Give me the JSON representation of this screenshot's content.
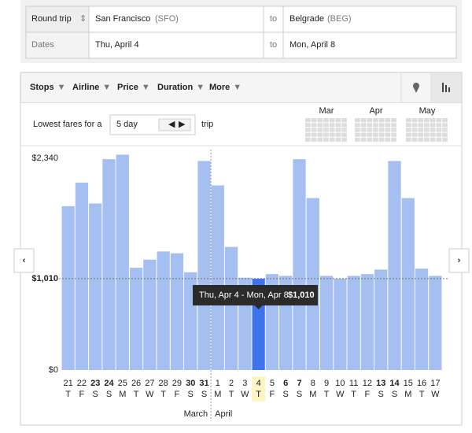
{
  "search": {
    "trip_type": "Round trip",
    "origin": "San Francisco",
    "origin_code": "(SFO)",
    "to_1": "to",
    "destination": "Belgrade",
    "destination_code": "(BEG)",
    "dates_label": "Dates",
    "depart": "Thu, April 4",
    "to_2": "to",
    "return": "Mon, April 8"
  },
  "filters": [
    "Stops",
    "Airline",
    "Price",
    "Duration",
    "More"
  ],
  "trip_length": {
    "prefix": "Lowest fares for a",
    "value": "5 day",
    "suffix": "trip"
  },
  "mini_calendar": [
    "Mar",
    "Apr",
    "May"
  ],
  "months": [
    "March",
    "April"
  ],
  "tooltip": {
    "dates": "Thu, Apr 4 - Mon, Apr 8",
    "price": "$1,010"
  },
  "chart_data": {
    "type": "bar",
    "categories": [
      "21",
      "22",
      "23",
      "24",
      "25",
      "26",
      "27",
      "28",
      "29",
      "30",
      "31",
      "1",
      "2",
      "3",
      "4",
      "5",
      "6",
      "7",
      "8",
      "9",
      "10",
      "11",
      "12",
      "13",
      "14",
      "15",
      "16",
      "17"
    ],
    "weekdays": [
      "T",
      "F",
      "S",
      "S",
      "M",
      "T",
      "W",
      "T",
      "F",
      "S",
      "S",
      "M",
      "T",
      "W",
      "T",
      "F",
      "S",
      "S",
      "M",
      "T",
      "W",
      "T",
      "F",
      "S",
      "S",
      "M",
      "T",
      "W"
    ],
    "values": [
      1810,
      2070,
      1840,
      2330,
      2380,
      1130,
      1220,
      1310,
      1290,
      1080,
      2310,
      2040,
      1360,
      1020,
      1010,
      1060,
      1040,
      2330,
      1900,
      1040,
      1010,
      1040,
      1060,
      1110,
      2310,
      1900,
      1120,
      1040
    ],
    "color": "#a4bff0",
    "selected_color": "#3f73ec",
    "selected": 14,
    "ylim": [
      0,
      2340
    ],
    "yticks": [
      {
        "value": 0,
        "label": "$0"
      },
      {
        "value": 1010,
        "label": "$1,010"
      },
      {
        "value": 2340,
        "label": "$2,340"
      }
    ],
    "reference_line": 1010
  }
}
